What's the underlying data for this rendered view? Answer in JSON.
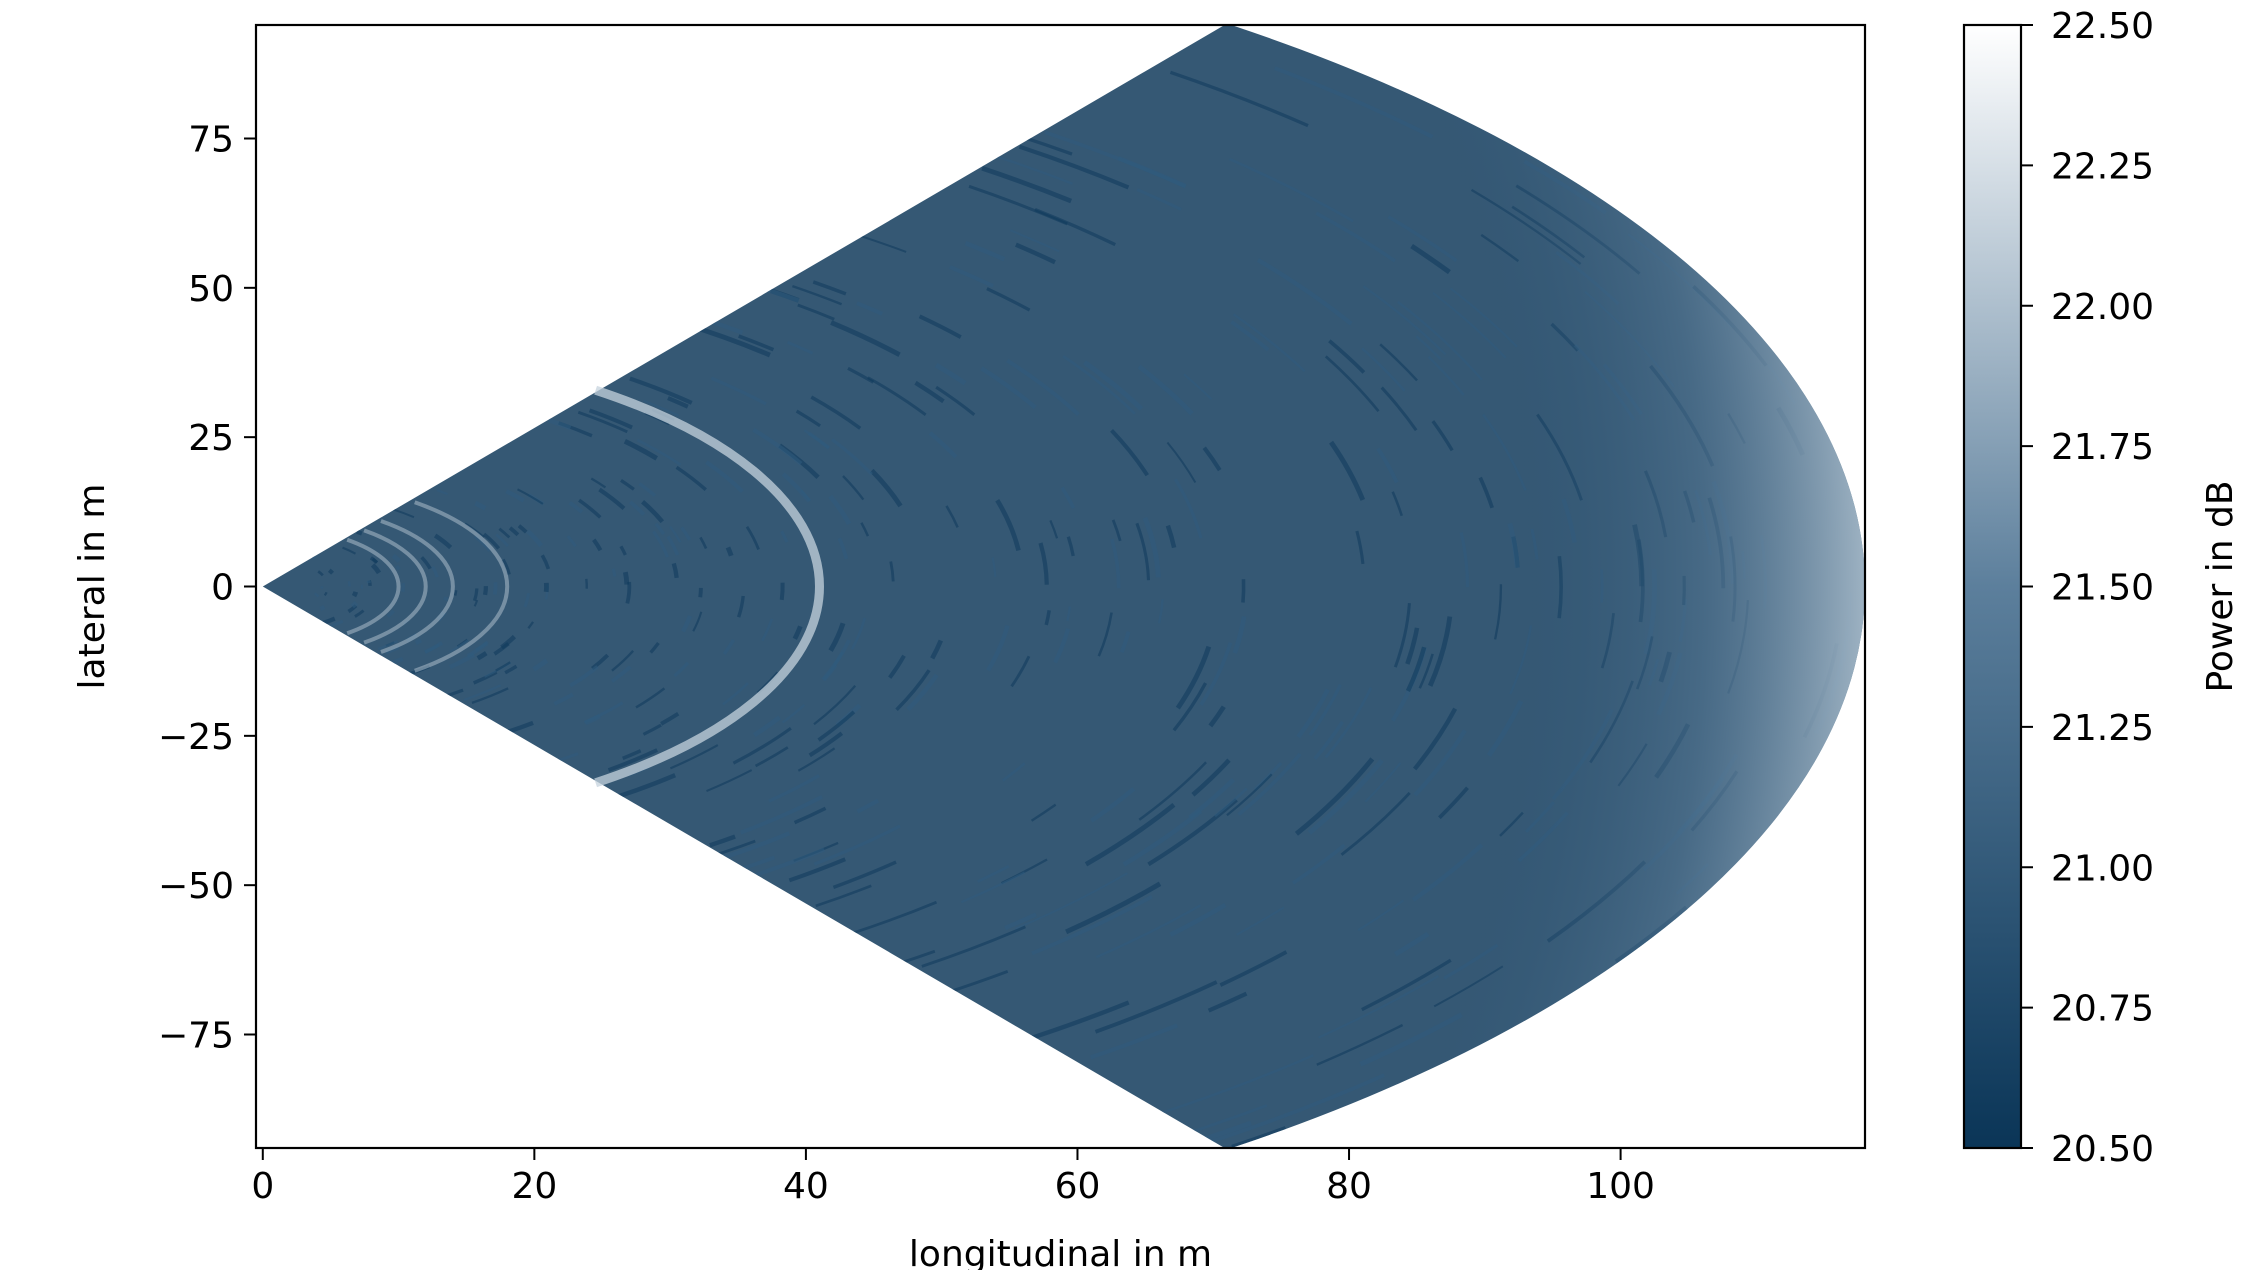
{
  "chart_data": {
    "type": "heatmap",
    "title": "",
    "xlabel": "longitudinal in m",
    "ylabel": "lateral in m",
    "xlim": [
      -0.5,
      118
    ],
    "ylim": [
      -94,
      94
    ],
    "xticks": [
      0,
      20,
      40,
      60,
      80,
      100
    ],
    "yticks": [
      -75,
      -50,
      -25,
      0,
      25,
      50,
      75
    ],
    "xtick_labels": [
      "0",
      "20",
      "40",
      "60",
      "80",
      "100"
    ],
    "ytick_labels": [
      "−75",
      "−50",
      "−25",
      "0",
      "25",
      "50",
      "75"
    ],
    "grid": false,
    "sector": {
      "origin": [
        0,
        0
      ],
      "range_max_m": 118,
      "half_angle_deg": 53
    },
    "rings_m": [
      10,
      12,
      14,
      18,
      41
    ],
    "colorbar": {
      "label": "Power in dB",
      "vmin": 20.5,
      "vmax": 22.5,
      "ticks": [
        20.5,
        20.75,
        21.0,
        21.25,
        21.5,
        21.75,
        22.0,
        22.25,
        22.5
      ],
      "tick_labels": [
        "20.50",
        "20.75",
        "21.00",
        "21.25",
        "21.50",
        "21.75",
        "22.00",
        "22.25",
        "22.50"
      ],
      "colors": [
        "#0a3557",
        "#ffffff"
      ]
    },
    "background_value_db": 20.85
  }
}
